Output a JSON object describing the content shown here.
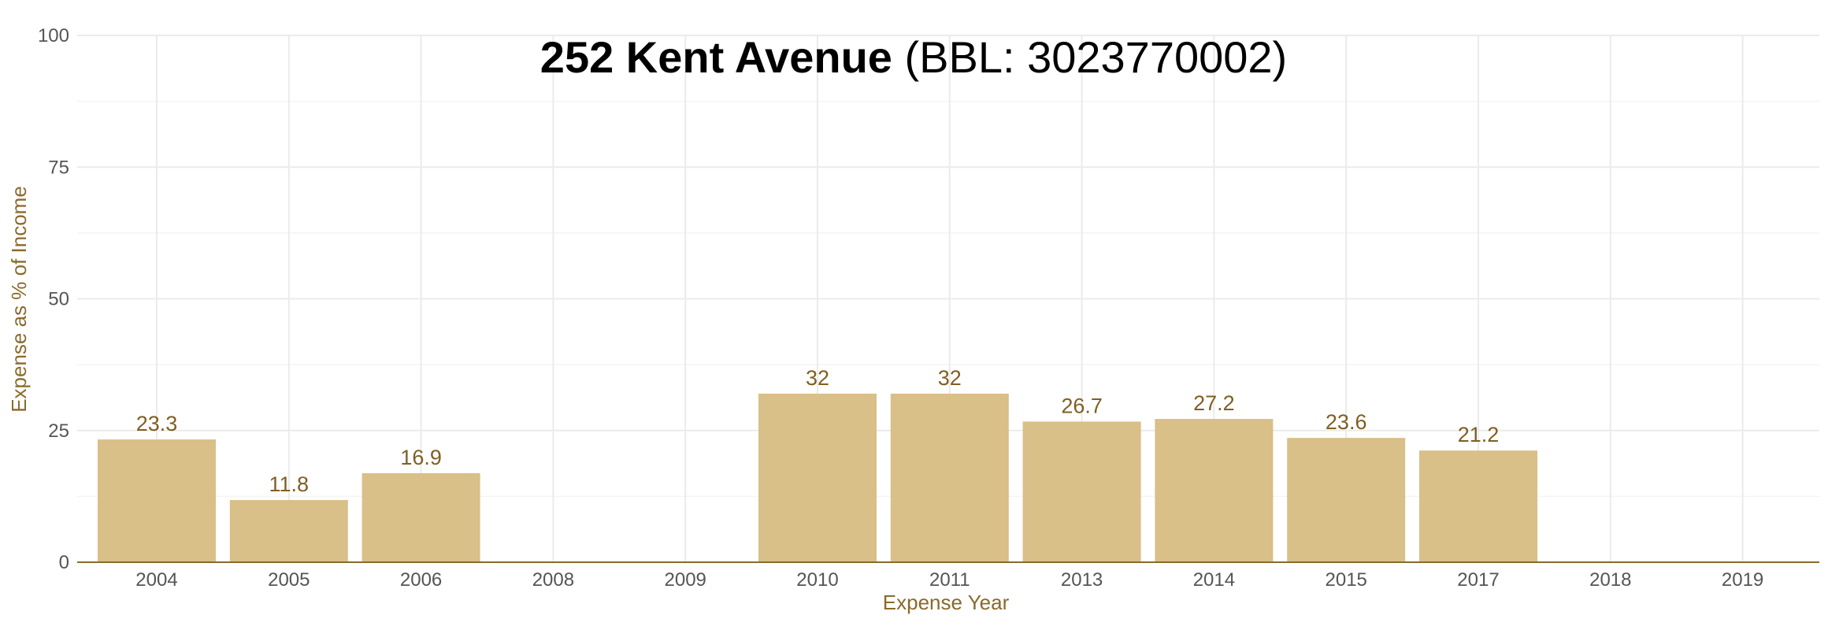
{
  "chart_data": {
    "type": "bar",
    "title_bold": "252 Kent Avenue",
    "title_rest": " (BBL: 3023770002)",
    "xlabel": "Expense Year",
    "ylabel": "Expense as % of Income",
    "categories": [
      "2004",
      "2005",
      "2006",
      "2008",
      "2009",
      "2010",
      "2011",
      "2013",
      "2014",
      "2015",
      "2017",
      "2018",
      "2019"
    ],
    "values": [
      23.3,
      11.8,
      16.9,
      null,
      null,
      32,
      32,
      26.7,
      27.2,
      23.6,
      21.2,
      null,
      null
    ],
    "data_labels": [
      "23.3",
      "11.8",
      "16.9",
      "",
      "",
      "32",
      "32",
      "26.7",
      "27.2",
      "23.6",
      "21.2",
      "",
      ""
    ],
    "ylim": [
      0,
      100
    ],
    "yticks": [
      0,
      25,
      50,
      75,
      100
    ],
    "grid": true,
    "bar_color": "#d9bf88",
    "label_color": "#7f5f22",
    "axis_title_color": "#8a6a2b",
    "baseline_color": "#8a6a2b",
    "grid_color": "#ebebeb"
  }
}
